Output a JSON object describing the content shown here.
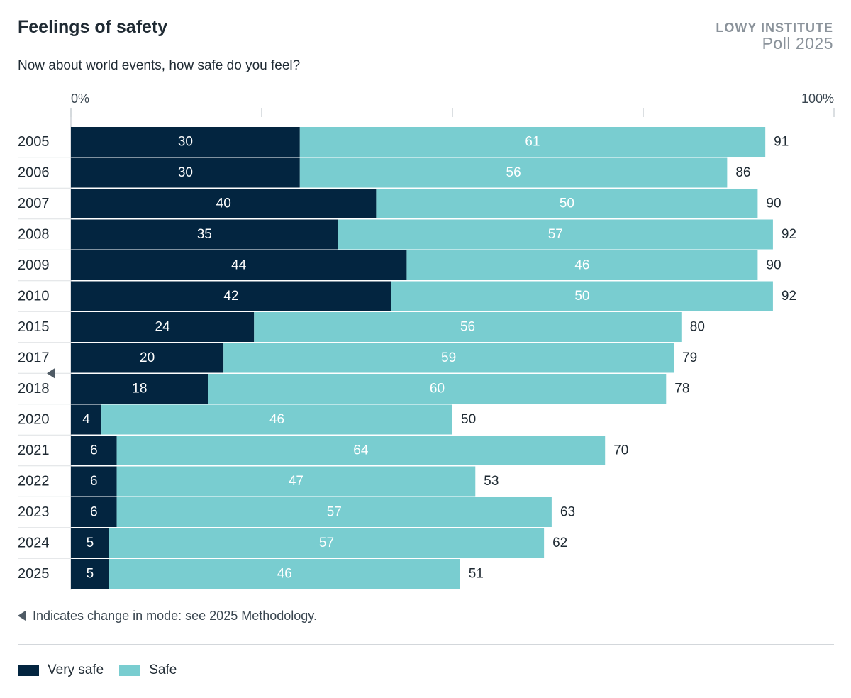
{
  "header": {
    "title": "Feelings of safety",
    "subtitle": "Now about world events, how safe do you feel?",
    "brand_org": "LOWY INSTITUTE",
    "brand_poll": "Poll 2025"
  },
  "footnote": {
    "text": "Indicates change in mode: see ",
    "link": "2025 Methodology",
    "end": "."
  },
  "colors": {
    "very_safe": "#032540",
    "safe": "#79cdd0",
    "grid": "#cfd4d8",
    "text": "#1f2a33"
  },
  "chart_data": {
    "type": "bar",
    "orientation": "horizontal",
    "stacked": true,
    "categories": [
      "2005",
      "2006",
      "2007",
      "2008",
      "2009",
      "2010",
      "2015",
      "2017",
      "2018",
      "2020",
      "2021",
      "2022",
      "2023",
      "2024",
      "2025"
    ],
    "series": [
      {
        "name": "Very safe",
        "values": [
          30,
          30,
          40,
          35,
          44,
          42,
          24,
          20,
          18,
          4,
          6,
          6,
          6,
          5,
          5
        ]
      },
      {
        "name": "Safe",
        "values": [
          61,
          56,
          50,
          57,
          46,
          50,
          56,
          59,
          60,
          46,
          64,
          47,
          57,
          57,
          46
        ]
      }
    ],
    "totals": [
      91,
      86,
      90,
      92,
      90,
      92,
      80,
      79,
      78,
      50,
      70,
      53,
      63,
      62,
      51
    ],
    "axis_labels": [
      "0%",
      "100%"
    ],
    "xlim": [
      0,
      100
    ],
    "gridlines": [
      0,
      25,
      50,
      75,
      100
    ],
    "mode_change_marker_between": [
      "2017",
      "2018"
    ],
    "legend_position": "bottom-left"
  }
}
